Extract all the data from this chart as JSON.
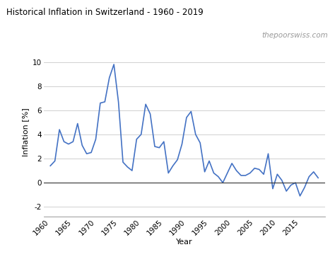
{
  "title": "Historical Inflation in Switzerland - 1960 - 2019",
  "watermark": "thepoorswiss.com",
  "xlabel": "Year",
  "ylabel": "Inflation [%]",
  "years": [
    1960,
    1961,
    1962,
    1963,
    1964,
    1965,
    1966,
    1967,
    1968,
    1969,
    1970,
    1971,
    1972,
    1973,
    1974,
    1975,
    1976,
    1977,
    1978,
    1979,
    1980,
    1981,
    1982,
    1983,
    1984,
    1985,
    1986,
    1987,
    1988,
    1989,
    1990,
    1991,
    1992,
    1993,
    1994,
    1995,
    1996,
    1997,
    1998,
    1999,
    2000,
    2001,
    2002,
    2003,
    2004,
    2005,
    2006,
    2007,
    2008,
    2009,
    2010,
    2011,
    2012,
    2013,
    2014,
    2015,
    2016,
    2017,
    2018,
    2019
  ],
  "inflation": [
    1.4,
    1.8,
    4.4,
    3.4,
    3.2,
    3.4,
    4.9,
    3.1,
    2.4,
    2.5,
    3.6,
    6.6,
    6.7,
    8.7,
    9.8,
    6.7,
    1.7,
    1.3,
    1.0,
    3.6,
    4.0,
    6.5,
    5.7,
    3.0,
    2.9,
    3.4,
    0.8,
    1.4,
    1.9,
    3.2,
    5.4,
    5.9,
    4.0,
    3.3,
    0.9,
    1.8,
    0.8,
    0.5,
    0.0,
    0.8,
    1.6,
    1.0,
    0.6,
    0.6,
    0.8,
    1.2,
    1.1,
    0.7,
    2.4,
    -0.5,
    0.7,
    0.2,
    -0.7,
    -0.2,
    0.0,
    -1.1,
    -0.4,
    0.5,
    0.9,
    0.4
  ],
  "line_color": "#4472C4",
  "line_width": 1.2,
  "ylim": [
    -2.8,
    11.2
  ],
  "yticks": [
    -2,
    0,
    2,
    4,
    6,
    8,
    10
  ],
  "xticks": [
    1960,
    1965,
    1970,
    1975,
    1980,
    1985,
    1990,
    1995,
    2000,
    2005,
    2010,
    2015
  ],
  "xlim": [
    1958.5,
    2020.5
  ],
  "background_color": "#ffffff",
  "grid_color": "#d0d0d0",
  "title_fontsize": 8.5,
  "axis_label_fontsize": 8,
  "tick_fontsize": 7.5,
  "watermark_fontsize": 7.5
}
